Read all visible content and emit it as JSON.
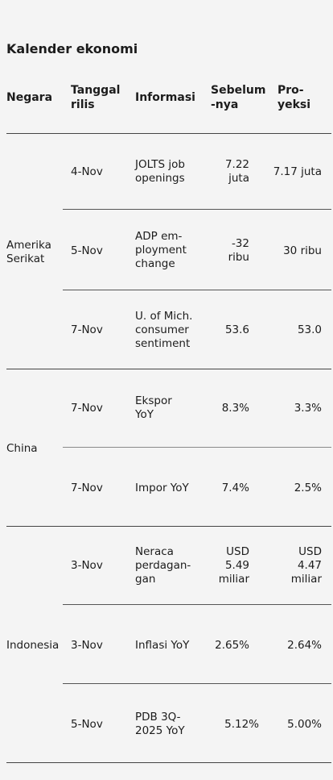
{
  "title": "Kalender ekonomi",
  "headers": {
    "country": "Negara",
    "date": "Tanggal rilis",
    "info": "Informasi",
    "previous": "Sebelum -nya",
    "projection": "Pro- yeksi"
  },
  "groups": [
    {
      "country": "Amerika Serikat",
      "rows": [
        {
          "date": "4-Nov",
          "info": "JOLTS job openings",
          "previous": "7.22 juta",
          "projection": "7.17 juta"
        },
        {
          "date": "5-Nov",
          "info": "ADP em- ployment change",
          "previous": "-32 ribu",
          "projection": "30 ribu"
        },
        {
          "date": "7-Nov",
          "info": "U. of Mich. consumer sentiment",
          "previous": "53.6",
          "projection": "53.0"
        }
      ]
    },
    {
      "country": "China",
      "rows": [
        {
          "date": "7-Nov",
          "info": "Ekspor YoY",
          "previous": "8.3%",
          "projection": "3.3%"
        },
        {
          "date": "7-Nov",
          "info": "Impor YoY",
          "previous": "7.4%",
          "projection": "2.5%"
        }
      ]
    },
    {
      "country": "Indonesia",
      "rows": [
        {
          "date": "3-Nov",
          "info": "Neraca perdagan- gan",
          "previous": "USD 5.49 miliar",
          "projection": "USD 4.47 miliar"
        },
        {
          "date": "3-Nov",
          "info": "Inflasi YoY",
          "previous": "2.65%",
          "projection": "2.64%"
        },
        {
          "date": "5-Nov",
          "info": "PDB 3Q- 2025 YoY",
          "previous": "5.12%",
          "projection": "5.00%"
        }
      ]
    }
  ]
}
